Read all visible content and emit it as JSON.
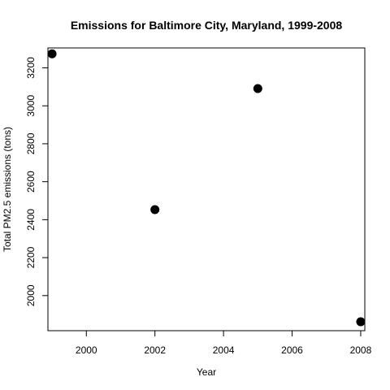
{
  "chart_data": {
    "type": "scatter",
    "title": "Emissions for Baltimore City, Maryland, 1999-2008",
    "xlabel": "Year",
    "ylabel": "Total PM2.5 emissions (tons)",
    "xlim": [
      1998.88,
      2008.12
    ],
    "ylim": [
      1815,
      3305
    ],
    "x_ticks": [
      2000,
      2002,
      2004,
      2006,
      2008
    ],
    "y_ticks": [
      2000,
      2200,
      2400,
      2600,
      2800,
      3000,
      3200
    ],
    "grid": false,
    "points": [
      {
        "x": 1999,
        "y": 3274
      },
      {
        "x": 2002,
        "y": 2453
      },
      {
        "x": 2005,
        "y": 3091
      },
      {
        "x": 2008,
        "y": 1862
      }
    ],
    "marker_color": "#000000"
  }
}
